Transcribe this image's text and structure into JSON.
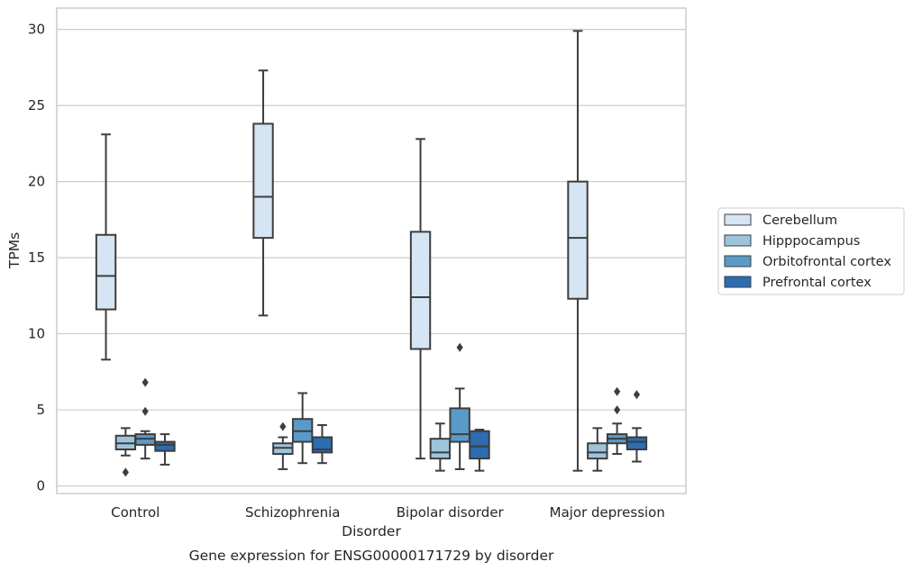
{
  "chart_data": {
    "type": "boxplot",
    "caption": "Gene expression for ENSG00000171729 by disorder",
    "xlabel": "Disorder",
    "ylabel": "TPMs",
    "ylim": [
      -0.5,
      31.4
    ],
    "yticks": [
      0,
      5,
      10,
      15,
      20,
      25,
      30
    ],
    "grid": true,
    "legend_position": "right",
    "categories": [
      "Control",
      "Schizophrenia",
      "Bipolar disorder",
      "Major depression"
    ],
    "series": [
      {
        "name": "Cerebellum",
        "color": "#d6e5f3",
        "boxes": [
          {
            "whisker_low": 8.3,
            "q1": 11.6,
            "median": 13.8,
            "q3": 16.5,
            "whisker_high": 23.1,
            "outliers": []
          },
          {
            "whisker_low": 11.2,
            "q1": 16.3,
            "median": 19.0,
            "q3": 23.8,
            "whisker_high": 27.3,
            "outliers": []
          },
          {
            "whisker_low": 1.8,
            "q1": 9.0,
            "median": 12.4,
            "q3": 16.7,
            "whisker_high": 22.8,
            "outliers": []
          },
          {
            "whisker_low": 1.0,
            "q1": 12.3,
            "median": 16.3,
            "q3": 20.0,
            "whisker_high": 29.9,
            "outliers": []
          }
        ]
      },
      {
        "name": "Hipppocampus",
        "color": "#9dc4dd",
        "boxes": [
          {
            "whisker_low": 2.0,
            "q1": 2.4,
            "median": 2.8,
            "q3": 3.3,
            "whisker_high": 3.8,
            "outliers": [
              0.9
            ]
          },
          {
            "whisker_low": 1.1,
            "q1": 2.1,
            "median": 2.5,
            "q3": 2.8,
            "whisker_high": 3.2,
            "outliers": [
              3.9
            ]
          },
          {
            "whisker_low": 1.0,
            "q1": 1.8,
            "median": 2.2,
            "q3": 3.1,
            "whisker_high": 4.1,
            "outliers": []
          },
          {
            "whisker_low": 1.0,
            "q1": 1.8,
            "median": 2.2,
            "q3": 2.8,
            "whisker_high": 3.8,
            "outliers": []
          }
        ]
      },
      {
        "name": "Orbitofrontal cortex",
        "color": "#5a9ac8",
        "boxes": [
          {
            "whisker_low": 1.8,
            "q1": 2.7,
            "median": 3.1,
            "q3": 3.4,
            "whisker_high": 3.6,
            "outliers": [
              4.9,
              6.8
            ]
          },
          {
            "whisker_low": 1.5,
            "q1": 2.9,
            "median": 3.6,
            "q3": 4.4,
            "whisker_high": 6.1,
            "outliers": []
          },
          {
            "whisker_low": 1.1,
            "q1": 2.9,
            "median": 3.4,
            "q3": 5.1,
            "whisker_high": 6.4,
            "outliers": [
              9.1
            ]
          },
          {
            "whisker_low": 2.1,
            "q1": 2.8,
            "median": 3.1,
            "q3": 3.4,
            "whisker_high": 4.1,
            "outliers": [
              5.0,
              6.2
            ]
          }
        ]
      },
      {
        "name": "Prefrontal cortex",
        "color": "#2c6cb1",
        "boxes": [
          {
            "whisker_low": 1.4,
            "q1": 2.3,
            "median": 2.7,
            "q3": 2.9,
            "whisker_high": 3.4,
            "outliers": []
          },
          {
            "whisker_low": 1.5,
            "q1": 2.2,
            "median": 2.4,
            "q3": 3.2,
            "whisker_high": 4.0,
            "outliers": []
          },
          {
            "whisker_low": 1.0,
            "q1": 1.8,
            "median": 2.6,
            "q3": 3.6,
            "whisker_high": 3.7,
            "outliers": []
          },
          {
            "whisker_low": 1.6,
            "q1": 2.4,
            "median": 2.9,
            "q3": 3.2,
            "whisker_high": 3.8,
            "outliers": [
              6.0
            ]
          }
        ]
      }
    ]
  }
}
